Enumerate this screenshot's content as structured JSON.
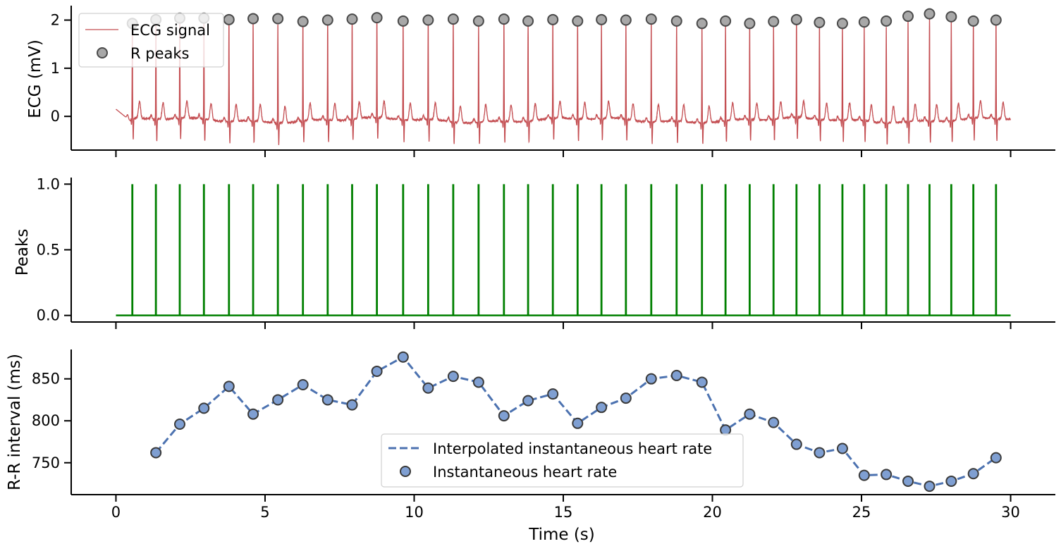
{
  "chart_data": [
    {
      "type": "line",
      "ylabel": "ECG (mV)",
      "xlabel": "",
      "xlim": [
        -1.5,
        31.5
      ],
      "ylim": [
        -0.7,
        2.3
      ],
      "yticks": [
        0,
        1,
        2
      ],
      "xticks": [
        0,
        5,
        10,
        15,
        20,
        25,
        30
      ],
      "show_xtick_labels": false,
      "grid": false,
      "legend_position": "top-left",
      "colors": {
        "ecg": "#c44e52",
        "peak_fill": "#a8a8a8",
        "peak_edge": "#4a4a4a"
      },
      "series": [
        {
          "name": "ECG signal",
          "kind": "line"
        },
        {
          "name": "R peaks",
          "kind": "scatter",
          "x": [
            0.55,
            1.34,
            2.14,
            2.95,
            3.79,
            4.6,
            5.43,
            6.27,
            7.1,
            7.92,
            8.75,
            9.63,
            10.47,
            11.31,
            12.16,
            13.01,
            13.82,
            14.65,
            15.48,
            16.28,
            17.1,
            17.95,
            18.8,
            19.65,
            20.44,
            21.25,
            22.05,
            22.82,
            23.59,
            24.36,
            25.09,
            25.83,
            26.56,
            27.28,
            28.01,
            28.75,
            29.51
          ],
          "y": [
            1.93,
            2.01,
            2.04,
            2.04,
            2.01,
            2.03,
            2.03,
            1.97,
            2.0,
            2.02,
            2.05,
            1.98,
            2.0,
            2.02,
            1.98,
            2.02,
            1.98,
            2.01,
            1.98,
            2.01,
            2.0,
            2.02,
            1.98,
            1.93,
            1.98,
            1.93,
            1.97,
            2.01,
            1.95,
            1.93,
            1.96,
            1.98,
            2.08,
            2.13,
            2.07,
            1.98,
            2.0
          ]
        }
      ]
    },
    {
      "type": "line",
      "ylabel": "Peaks",
      "xlabel": "",
      "xlim": [
        -1.5,
        31.5
      ],
      "ylim": [
        -0.05,
        1.05
      ],
      "yticks": [
        0.0,
        0.5,
        1.0
      ],
      "ytick_labels": [
        "0.0",
        "0.5",
        "1.0"
      ],
      "xticks": [
        0,
        5,
        10,
        15,
        20,
        25,
        30
      ],
      "show_xtick_labels": false,
      "grid": false,
      "colors": {
        "peaks": "#008000"
      },
      "series": [
        {
          "name": "",
          "kind": "impulse",
          "baseline": 0,
          "height": 1,
          "x_start": 0,
          "x_end": 30,
          "x": [
            0.55,
            1.34,
            2.14,
            2.95,
            3.79,
            4.6,
            5.43,
            6.27,
            7.1,
            7.92,
            8.75,
            9.63,
            10.47,
            11.31,
            12.16,
            13.01,
            13.82,
            14.65,
            15.48,
            16.28,
            17.1,
            17.95,
            18.8,
            19.65,
            20.44,
            21.25,
            22.05,
            22.82,
            23.59,
            24.36,
            25.09,
            25.83,
            26.56,
            27.28,
            28.01,
            28.75,
            29.51
          ]
        }
      ]
    },
    {
      "type": "line",
      "ylabel": "R-R interval (ms)",
      "xlabel": "Time (s)",
      "xlim": [
        -1.5,
        31.5
      ],
      "ylim": [
        712,
        885
      ],
      "yticks": [
        750,
        800,
        850
      ],
      "xticks": [
        0,
        5,
        10,
        15,
        20,
        25,
        30
      ],
      "show_xtick_labels": true,
      "grid": false,
      "legend_position": "lower-center",
      "colors": {
        "line": "#4c72b0",
        "marker_fill": "#7f9fd2",
        "marker_edge": "#3a3a3a"
      },
      "series": [
        {
          "name": "Interpolated instantaneous heart rate",
          "kind": "line"
        },
        {
          "name": "Instantaneous heart rate",
          "kind": "scatter",
          "x": [
            1.34,
            2.14,
            2.95,
            3.79,
            4.6,
            5.43,
            6.27,
            7.1,
            7.92,
            8.75,
            9.63,
            10.47,
            11.31,
            12.16,
            13.01,
            13.82,
            14.65,
            15.48,
            16.28,
            17.1,
            17.95,
            18.8,
            19.65,
            20.44,
            21.25,
            22.05,
            22.82,
            23.59,
            24.36,
            25.09,
            25.83,
            26.56,
            27.28,
            28.01,
            28.75,
            29.51
          ],
          "y": [
            762,
            796,
            815,
            841,
            808,
            825,
            843,
            825,
            819,
            859,
            876,
            839,
            853,
            846,
            806,
            824,
            832,
            797,
            816,
            827,
            850,
            854,
            846,
            789,
            808,
            798,
            772,
            762,
            767,
            735,
            736,
            728,
            722,
            728,
            737,
            756
          ]
        }
      ]
    }
  ]
}
